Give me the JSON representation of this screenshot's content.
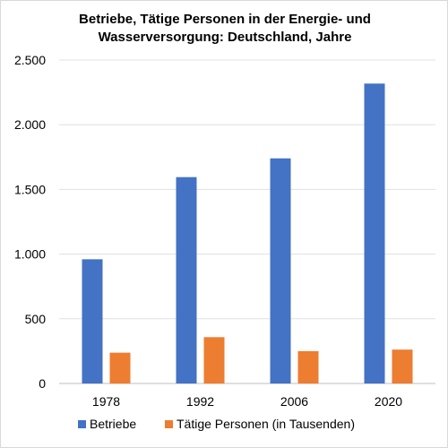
{
  "chart_data": {
    "type": "bar",
    "title_lines": [
      "Betriebe, Tätige Personen in der Energie- und",
      "Wasserversorgung: Deutschland, Jahre"
    ],
    "categories": [
      "1978",
      "1992",
      "2006",
      "2020"
    ],
    "series": [
      {
        "name": "Betriebe",
        "color": "#4472c4",
        "values": [
          960,
          1595,
          1740,
          2318
        ]
      },
      {
        "name": "Tätige Personen (in Tausenden)",
        "color": "#ed7d31",
        "values": [
          238,
          358,
          250,
          262
        ]
      }
    ],
    "ylim": [
      0,
      2500
    ],
    "yticks": [
      0,
      500,
      1000,
      1500,
      2000,
      2500
    ],
    "ytick_labels": [
      "0",
      "500",
      "1.000",
      "1.500",
      "2.000",
      "2.500"
    ],
    "grid": true,
    "legend_position": "bottom"
  }
}
